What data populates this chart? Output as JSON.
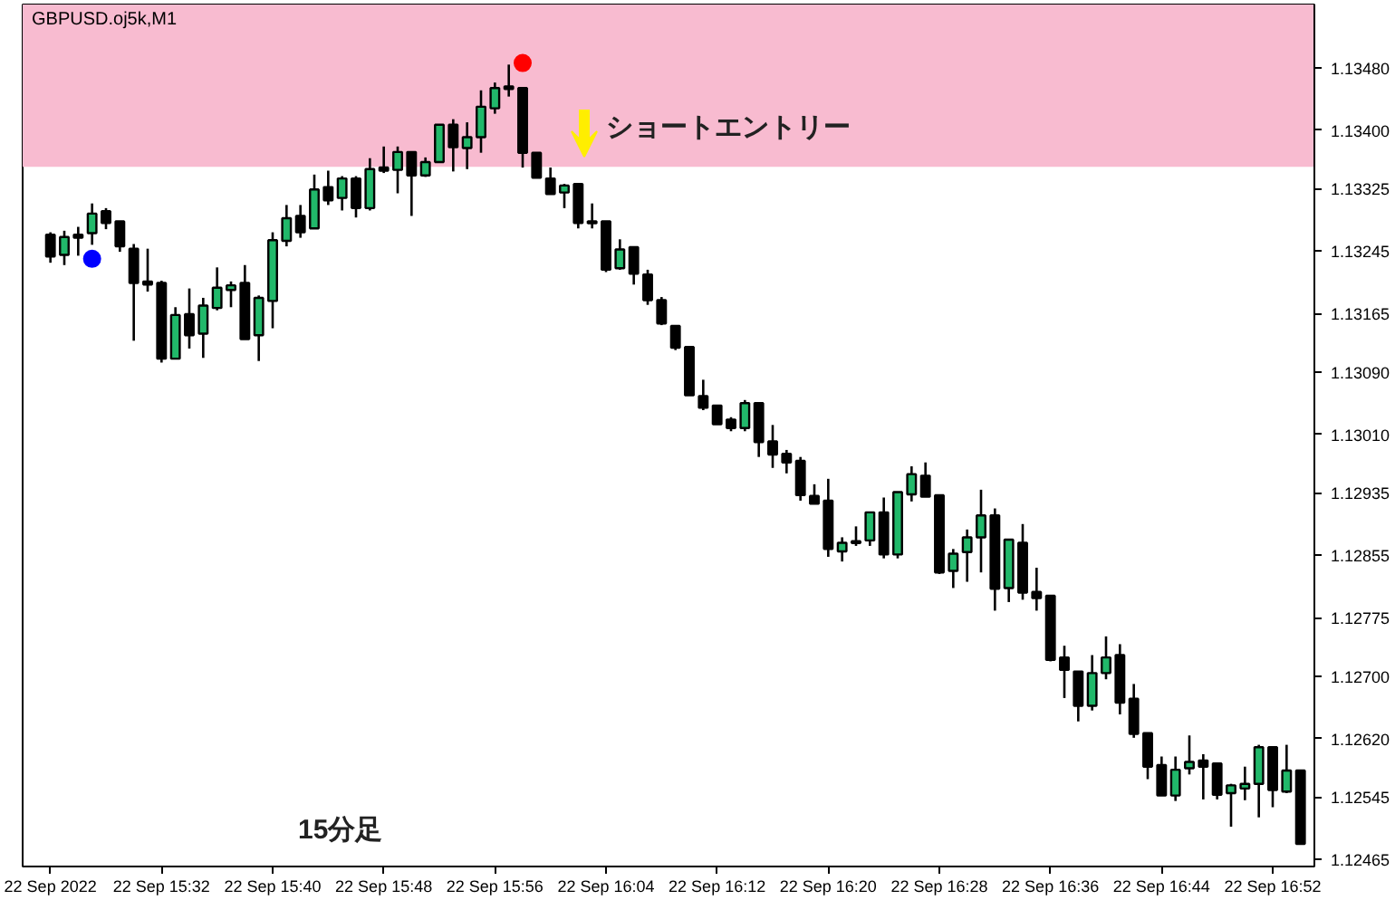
{
  "chart_data": {
    "type": "candlestick",
    "title": "GBPUSD.oj5k,M1",
    "x": [
      "2022-09-22T15:24",
      "2022-09-22T15:25",
      "2022-09-22T15:26",
      "2022-09-22T15:27",
      "2022-09-22T15:28",
      "2022-09-22T15:29",
      "2022-09-22T15:30",
      "2022-09-22T15:31",
      "2022-09-22T15:32",
      "2022-09-22T15:33",
      "2022-09-22T15:34",
      "2022-09-22T15:35",
      "2022-09-22T15:36",
      "2022-09-22T15:37",
      "2022-09-22T15:38",
      "2022-09-22T15:39",
      "2022-09-22T15:40",
      "2022-09-22T15:41",
      "2022-09-22T15:42",
      "2022-09-22T15:43",
      "2022-09-22T15:44",
      "2022-09-22T15:45",
      "2022-09-22T15:46",
      "2022-09-22T15:47",
      "2022-09-22T15:48",
      "2022-09-22T15:49",
      "2022-09-22T15:50",
      "2022-09-22T15:51",
      "2022-09-22T15:52",
      "2022-09-22T15:53",
      "2022-09-22T15:54",
      "2022-09-22T15:55",
      "2022-09-22T15:56",
      "2022-09-22T15:57",
      "2022-09-22T15:58",
      "2022-09-22T15:59",
      "2022-09-22T16:00",
      "2022-09-22T16:01",
      "2022-09-22T16:02",
      "2022-09-22T16:03",
      "2022-09-22T16:04",
      "2022-09-22T16:05",
      "2022-09-22T16:06",
      "2022-09-22T16:07",
      "2022-09-22T16:08",
      "2022-09-22T16:09",
      "2022-09-22T16:10",
      "2022-09-22T16:11",
      "2022-09-22T16:12",
      "2022-09-22T16:13",
      "2022-09-22T16:14",
      "2022-09-22T16:15",
      "2022-09-22T16:16",
      "2022-09-22T16:17",
      "2022-09-22T16:18",
      "2022-09-22T16:19",
      "2022-09-22T16:20",
      "2022-09-22T16:21",
      "2022-09-22T16:22",
      "2022-09-22T16:23",
      "2022-09-22T16:24",
      "2022-09-22T16:25",
      "2022-09-22T16:26",
      "2022-09-22T16:27",
      "2022-09-22T16:28",
      "2022-09-22T16:29",
      "2022-09-22T16:30",
      "2022-09-22T16:31",
      "2022-09-22T16:32",
      "2022-09-22T16:33",
      "2022-09-22T16:34",
      "2022-09-22T16:35",
      "2022-09-22T16:36",
      "2022-09-22T16:37",
      "2022-09-22T16:38",
      "2022-09-22T16:39",
      "2022-09-22T16:40",
      "2022-09-22T16:41",
      "2022-09-22T16:42",
      "2022-09-22T16:43",
      "2022-09-22T16:44",
      "2022-09-22T16:45",
      "2022-09-22T16:46",
      "2022-09-22T16:47",
      "2022-09-22T16:48",
      "2022-09-22T16:49",
      "2022-09-22T16:50",
      "2022-09-22T16:51",
      "2022-09-22T16:52",
      "2022-09-22T16:53",
      "2022-09-22T16:54"
    ],
    "ohlc": [
      [
        1.13266,
        1.13269,
        1.1323,
        1.13238
      ],
      [
        1.1324,
        1.13271,
        1.13227,
        1.13263
      ],
      [
        1.13266,
        1.13276,
        1.13239,
        1.13262
      ],
      [
        1.13268,
        1.13306,
        1.13253,
        1.13293
      ],
      [
        1.13296,
        1.133,
        1.13273,
        1.13281
      ],
      [
        1.13283,
        1.13283,
        1.13244,
        1.13251
      ],
      [
        1.13248,
        1.13254,
        1.1313,
        1.13204
      ],
      [
        1.13206,
        1.13248,
        1.13193,
        1.13202
      ],
      [
        1.13204,
        1.13207,
        1.13102,
        1.13107
      ],
      [
        1.13107,
        1.13173,
        1.13107,
        1.13163
      ],
      [
        1.13164,
        1.13197,
        1.1312,
        1.13137
      ],
      [
        1.13139,
        1.13185,
        1.13108,
        1.13175
      ],
      [
        1.13172,
        1.13224,
        1.13169,
        1.13198
      ],
      [
        1.13195,
        1.13206,
        1.13173,
        1.13201
      ],
      [
        1.13204,
        1.13227,
        1.13132,
        1.13132
      ],
      [
        1.13137,
        1.13188,
        1.13104,
        1.13185
      ],
      [
        1.13181,
        1.13269,
        1.13146,
        1.13259
      ],
      [
        1.13258,
        1.13304,
        1.13251,
        1.13287
      ],
      [
        1.1329,
        1.13304,
        1.13262,
        1.13269
      ],
      [
        1.13274,
        1.13343,
        1.13274,
        1.13324
      ],
      [
        1.13327,
        1.13348,
        1.13304,
        1.1331
      ],
      [
        1.13313,
        1.13341,
        1.13297,
        1.13338
      ],
      [
        1.13338,
        1.13341,
        1.13288,
        1.133
      ],
      [
        1.133,
        1.13364,
        1.13297,
        1.1335
      ],
      [
        1.13352,
        1.13379,
        1.13345,
        1.13348
      ],
      [
        1.13349,
        1.13379,
        1.13319,
        1.13372
      ],
      [
        1.13372,
        1.13372,
        1.1329,
        1.13342
      ],
      [
        1.13342,
        1.13365,
        1.1334,
        1.13359
      ],
      [
        1.13359,
        1.13407,
        1.13359,
        1.13407
      ],
      [
        1.13407,
        1.13414,
        1.13347,
        1.13378
      ],
      [
        1.13377,
        1.1341,
        1.1335,
        1.13391
      ],
      [
        1.13391,
        1.13451,
        1.13371,
        1.1343
      ],
      [
        1.13428,
        1.13461,
        1.13421,
        1.13454
      ],
      [
        1.13456,
        1.13484,
        1.13443,
        1.13454
      ],
      [
        1.13454,
        1.13454,
        1.13352,
        1.13371
      ],
      [
        1.13371,
        1.13371,
        1.13339,
        1.13339
      ],
      [
        1.13338,
        1.13352,
        1.13318,
        1.13318
      ],
      [
        1.1332,
        1.13331,
        1.133,
        1.13329
      ],
      [
        1.13331,
        1.13331,
        1.13274,
        1.13281
      ],
      [
        1.13283,
        1.13306,
        1.13274,
        1.13282
      ],
      [
        1.13283,
        1.13283,
        1.13218,
        1.13221
      ],
      [
        1.13223,
        1.1326,
        1.13221,
        1.13247
      ],
      [
        1.1325,
        1.1325,
        1.13202,
        1.13216
      ],
      [
        1.13215,
        1.13221,
        1.13176,
        1.13182
      ],
      [
        1.13182,
        1.13186,
        1.1315,
        1.13152
      ],
      [
        1.13149,
        1.13149,
        1.13118,
        1.13121
      ],
      [
        1.13122,
        1.13122,
        1.1306,
        1.1306
      ],
      [
        1.13059,
        1.1308,
        1.13041,
        1.13044
      ],
      [
        1.13047,
        1.13047,
        1.13023,
        1.13023
      ],
      [
        1.13029,
        1.13032,
        1.13014,
        1.13018
      ],
      [
        1.13018,
        1.13054,
        1.13014,
        1.1305
      ],
      [
        1.1305,
        1.1305,
        1.12981,
        1.13
      ],
      [
        1.13001,
        1.13022,
        1.12967,
        1.12984
      ],
      [
        1.12985,
        1.1299,
        1.1296,
        1.12974
      ],
      [
        1.12976,
        1.12981,
        1.12925,
        1.12932
      ],
      [
        1.12931,
        1.12946,
        1.12921,
        1.12921
      ],
      [
        1.12925,
        1.12953,
        1.12853,
        1.12863
      ],
      [
        1.1286,
        1.12878,
        1.12847,
        1.12871
      ],
      [
        1.12873,
        1.12892,
        1.12867,
        1.12872
      ],
      [
        1.12874,
        1.1291,
        1.12867,
        1.1291
      ],
      [
        1.1291,
        1.12929,
        1.12851,
        1.12856
      ],
      [
        1.12856,
        1.12936,
        1.12851,
        1.12936
      ],
      [
        1.12933,
        1.12969,
        1.12924,
        1.12959
      ],
      [
        1.12957,
        1.12974,
        1.1293,
        1.1293
      ],
      [
        1.12932,
        1.12932,
        1.12831,
        1.12833
      ],
      [
        1.12835,
        1.12863,
        1.12813,
        1.12857
      ],
      [
        1.12859,
        1.12888,
        1.12821,
        1.12878
      ],
      [
        1.12878,
        1.12939,
        1.12833,
        1.12906
      ],
      [
        1.12906,
        1.12915,
        1.12784,
        1.12812
      ],
      [
        1.12813,
        1.12875,
        1.12795,
        1.12875
      ],
      [
        1.12871,
        1.12895,
        1.12798,
        1.12807
      ],
      [
        1.12808,
        1.12839,
        1.12784,
        1.128
      ],
      [
        1.12803,
        1.12803,
        1.12719,
        1.12721
      ],
      [
        1.12724,
        1.12739,
        1.12672,
        1.12708
      ],
      [
        1.12706,
        1.12706,
        1.12642,
        1.12662
      ],
      [
        1.12662,
        1.12727,
        1.12656,
        1.12704
      ],
      [
        1.12704,
        1.12751,
        1.12696,
        1.12724
      ],
      [
        1.12727,
        1.12741,
        1.12651,
        1.12666
      ],
      [
        1.12671,
        1.1269,
        1.12621,
        1.12626
      ],
      [
        1.12627,
        1.12627,
        1.12568,
        1.12584
      ],
      [
        1.12586,
        1.12597,
        1.12547,
        1.12547
      ],
      [
        1.12547,
        1.12597,
        1.1254,
        1.1258
      ],
      [
        1.12582,
        1.12624,
        1.12574,
        1.1259
      ],
      [
        1.12592,
        1.126,
        1.12542,
        1.12584
      ],
      [
        1.12588,
        1.12588,
        1.12542,
        1.12548
      ],
      [
        1.1255,
        1.12562,
        1.12507,
        1.1256
      ],
      [
        1.12556,
        1.12584,
        1.12541,
        1.12562
      ],
      [
        1.12562,
        1.12612,
        1.12519,
        1.12609
      ],
      [
        1.12609,
        1.12609,
        1.12532,
        1.12554
      ],
      [
        1.12552,
        1.12612,
        1.1255,
        1.12579
      ],
      [
        1.12579,
        1.12579,
        1.12485,
        1.12485
      ]
    ],
    "colors": [
      "#000000",
      "#21b86a",
      "#000000",
      "#21b86a",
      "#000000",
      "#000000",
      "#000000",
      "#000000",
      "#000000",
      "#21b86a",
      "#000000",
      "#21b86a",
      "#21b86a",
      "#21b86a",
      "#000000",
      "#21b86a",
      "#21b86a",
      "#21b86a",
      "#000000",
      "#21b86a",
      "#000000",
      "#21b86a",
      "#000000",
      "#21b86a",
      "#000000",
      "#21b86a",
      "#000000",
      "#21b86a",
      "#21b86a",
      "#000000",
      "#21b86a",
      "#21b86a",
      "#21b86a",
      "#000000",
      "#000000",
      "#000000",
      "#000000",
      "#21b86a",
      "#000000",
      "#000000",
      "#000000",
      "#21b86a",
      "#000000",
      "#000000",
      "#000000",
      "#000000",
      "#000000",
      "#000000",
      "#000000",
      "#000000",
      "#21b86a",
      "#000000",
      "#000000",
      "#000000",
      "#000000",
      "#000000",
      "#000000",
      "#21b86a",
      "#000000",
      "#21b86a",
      "#000000",
      "#21b86a",
      "#21b86a",
      "#000000",
      "#000000",
      "#21b86a",
      "#21b86a",
      "#21b86a",
      "#000000",
      "#21b86a",
      "#000000",
      "#000000",
      "#000000",
      "#000000",
      "#000000",
      "#21b86a",
      "#21b86a",
      "#000000",
      "#000000",
      "#000000",
      "#000000",
      "#21b86a",
      "#21b86a",
      "#000000",
      "#000000",
      "#21b86a",
      "#21b86a",
      "#21b86a",
      "#000000",
      "#21b86a",
      "#000000"
    ],
    "series": [
      {
        "type": "scatter",
        "color": "#ff0000",
        "x": [
          "2022-09-22T15:58"
        ],
        "values": [
          1.13486
        ]
      },
      {
        "type": "scatter",
        "color": "#0000ff",
        "x": [
          "2022-09-22T15:27"
        ],
        "values": [
          1.13235
        ]
      }
    ],
    "marker": "circle",
    "xlim": [
      "2022-09-22T15:22",
      "2022-09-22T16:55"
    ],
    "xticks": [
      {
        "value": "2022-09-22T15:24",
        "label": "22 Sep 2022"
      },
      {
        "value": "2022-09-22T15:32",
        "label": "22 Sep 15:32"
      },
      {
        "value": "2022-09-22T15:40",
        "label": "22 Sep 15:40"
      },
      {
        "value": "2022-09-22T15:48",
        "label": "22 Sep 15:48"
      },
      {
        "value": "2022-09-22T15:56",
        "label": "22 Sep 15:56"
      },
      {
        "value": "2022-09-22T16:04",
        "label": "22 Sep 16:04"
      },
      {
        "value": "2022-09-22T16:12",
        "label": "22 Sep 16:12"
      },
      {
        "value": "2022-09-22T16:20",
        "label": "22 Sep 16:20"
      },
      {
        "value": "2022-09-22T16:28",
        "label": "22 Sep 16:28"
      },
      {
        "value": "2022-09-22T16:36",
        "label": "22 Sep 16:36"
      },
      {
        "value": "2022-09-22T16:44",
        "label": "22 Sep 16:44"
      },
      {
        "value": "2022-09-22T16:52",
        "label": "22 Sep 16:52"
      }
    ],
    "ylim": [
      1.12456,
      1.13561
    ],
    "yticks": [
      {
        "value": 1.1348,
        "label": "1.13480"
      },
      {
        "value": 1.134,
        "label": "1.13400"
      },
      {
        "value": 1.13325,
        "label": "1.13325"
      },
      {
        "value": 1.13245,
        "label": "1.13245"
      },
      {
        "value": 1.13165,
        "label": "1.13165"
      },
      {
        "value": 1.1309,
        "label": "1.13090"
      },
      {
        "value": 1.1301,
        "label": "1.13010"
      },
      {
        "value": 1.12935,
        "label": "1.12935"
      },
      {
        "value": 1.12855,
        "label": "1.12855"
      },
      {
        "value": 1.12775,
        "label": "1.12775"
      },
      {
        "value": 1.127,
        "label": "1.12700"
      },
      {
        "value": 1.1262,
        "label": "1.12620"
      },
      {
        "value": 1.12545,
        "label": "1.12545"
      },
      {
        "value": 1.12465,
        "label": "1.12465"
      }
    ],
    "bands": [
      {
        "axis": "y",
        "from": 1.13353,
        "to": 1.13561,
        "color": "#f8bbd0"
      }
    ],
    "annotations": [
      "ショートエントリー",
      "15分足"
    ],
    "grid": false
  }
}
